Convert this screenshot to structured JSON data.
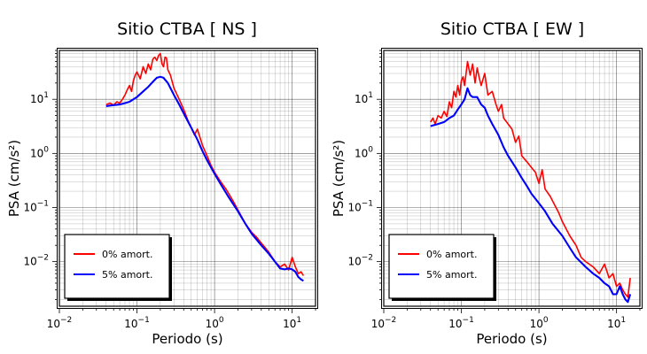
{
  "chart_data": [
    {
      "type": "line",
      "title": "Sitio CTBA [ NS ]",
      "xlabel": "Periodo (s)",
      "ylabel": "PSA (cm/s²)",
      "xscale": "log",
      "yscale": "log",
      "xlim": [
        0.01,
        20
      ],
      "ylim": [
        0.0015,
        80
      ],
      "grid": true,
      "legend_position": "bottom-left",
      "x_ticks": [
        {
          "b": "10",
          "e": "−2"
        },
        {
          "b": "10",
          "e": "−1"
        },
        {
          "b": "10",
          "e": "0"
        },
        {
          "b": "10",
          "e": "1"
        }
      ],
      "y_ticks": [
        {
          "b": "10",
          "e": "−2"
        },
        {
          "b": "10",
          "e": "−1"
        },
        {
          "b": "10",
          "e": "0"
        },
        {
          "b": "10",
          "e": "1"
        }
      ],
      "series": [
        {
          "name": "0% amort.",
          "color": "#ff0000",
          "x": [
            0.04,
            0.045,
            0.05,
            0.055,
            0.06,
            0.065,
            0.07,
            0.075,
            0.08,
            0.085,
            0.09,
            0.095,
            0.1,
            0.11,
            0.12,
            0.13,
            0.14,
            0.15,
            0.16,
            0.17,
            0.18,
            0.19,
            0.2,
            0.21,
            0.22,
            0.23,
            0.24,
            0.25,
            0.27,
            0.3,
            0.35,
            0.4,
            0.45,
            0.5,
            0.55,
            0.6,
            0.7,
            0.8,
            0.9,
            1.0,
            1.2,
            1.4,
            1.6,
            1.8,
            2.0,
            2.5,
            3,
            3.5,
            4,
            4.5,
            5,
            6,
            7,
            8,
            9,
            10,
            11,
            12,
            13,
            14
          ],
          "y": [
            8,
            8.5,
            7.8,
            9,
            8.5,
            10,
            12,
            15,
            18,
            14,
            22,
            28,
            32,
            24,
            40,
            30,
            45,
            35,
            55,
            60,
            52,
            65,
            70,
            45,
            40,
            60,
            58,
            35,
            28,
            16,
            10,
            6.5,
            4.2,
            3,
            2.2,
            2.8,
            1.4,
            0.9,
            0.6,
            0.45,
            0.3,
            0.22,
            0.16,
            0.12,
            0.09,
            0.05,
            0.035,
            0.028,
            0.022,
            0.018,
            0.015,
            0.01,
            0.008,
            0.009,
            0.007,
            0.012,
            0.008,
            0.006,
            0.0065,
            0.0055
          ]
        },
        {
          "name": "5% amort.",
          "color": "#0000ff",
          "x": [
            0.04,
            0.05,
            0.06,
            0.07,
            0.08,
            0.09,
            0.1,
            0.12,
            0.14,
            0.16,
            0.18,
            0.2,
            0.22,
            0.25,
            0.3,
            0.35,
            0.4,
            0.5,
            0.6,
            0.7,
            0.8,
            1.0,
            1.2,
            1.5,
            2,
            2.5,
            3,
            4,
            5,
            6,
            7,
            8,
            9,
            10,
            11,
            12,
            13,
            14
          ],
          "y": [
            7.5,
            7.8,
            8,
            8.5,
            9,
            10,
            11,
            14,
            17,
            21,
            25,
            26,
            25,
            20,
            12,
            8,
            5.5,
            3,
            1.8,
            1.1,
            0.75,
            0.42,
            0.27,
            0.16,
            0.085,
            0.05,
            0.033,
            0.02,
            0.014,
            0.01,
            0.0075,
            0.0072,
            0.0075,
            0.0072,
            0.0065,
            0.0052,
            0.0047,
            0.0044
          ]
        }
      ]
    },
    {
      "type": "line",
      "title": "Sitio CTBA [ EW ]",
      "xlabel": "Periodo (s)",
      "ylabel": "PSA (cm/s²)",
      "xscale": "log",
      "yscale": "log",
      "xlim": [
        0.01,
        20
      ],
      "ylim": [
        0.0015,
        80
      ],
      "grid": true,
      "legend_position": "bottom-left",
      "x_ticks": [
        {
          "b": "10",
          "e": "−2"
        },
        {
          "b": "10",
          "e": "−1"
        },
        {
          "b": "10",
          "e": "0"
        },
        {
          "b": "10",
          "e": "1"
        }
      ],
      "y_ticks": [
        {
          "b": "10",
          "e": "−2"
        },
        {
          "b": "10",
          "e": "−1"
        },
        {
          "b": "10",
          "e": "0"
        },
        {
          "b": "10",
          "e": "1"
        }
      ],
      "series": [
        {
          "name": "0% amort.",
          "color": "#ff0000",
          "x": [
            0.04,
            0.043,
            0.046,
            0.05,
            0.055,
            0.06,
            0.065,
            0.07,
            0.075,
            0.08,
            0.085,
            0.09,
            0.095,
            0.1,
            0.105,
            0.11,
            0.12,
            0.13,
            0.14,
            0.15,
            0.16,
            0.17,
            0.18,
            0.2,
            0.22,
            0.25,
            0.28,
            0.3,
            0.33,
            0.35,
            0.4,
            0.45,
            0.5,
            0.55,
            0.6,
            0.7,
            0.8,
            0.9,
            1.0,
            1.1,
            1.2,
            1.4,
            1.6,
            1.8,
            2,
            2.5,
            3,
            3.5,
            4,
            5,
            6,
            7,
            8,
            9,
            10,
            11,
            12,
            13,
            14,
            15
          ],
          "y": [
            3.8,
            4.5,
            3.5,
            5,
            4.5,
            6,
            4.8,
            9,
            7,
            14,
            11,
            18,
            12,
            22,
            26,
            18,
            50,
            28,
            45,
            20,
            38,
            25,
            18,
            30,
            12,
            14,
            8,
            6,
            8,
            4.5,
            3.5,
            2.8,
            1.6,
            2.1,
            0.9,
            0.7,
            0.55,
            0.45,
            0.28,
            0.5,
            0.22,
            0.16,
            0.11,
            0.08,
            0.055,
            0.03,
            0.02,
            0.012,
            0.01,
            0.008,
            0.006,
            0.009,
            0.005,
            0.006,
            0.0035,
            0.004,
            0.003,
            0.0025,
            0.0022,
            0.005
          ]
        },
        {
          "name": "5% amort.",
          "color": "#0000ff",
          "x": [
            0.04,
            0.05,
            0.06,
            0.07,
            0.08,
            0.09,
            0.1,
            0.11,
            0.12,
            0.13,
            0.14,
            0.16,
            0.18,
            0.2,
            0.22,
            0.25,
            0.3,
            0.35,
            0.4,
            0.5,
            0.6,
            0.7,
            0.8,
            1.0,
            1.2,
            1.5,
            2,
            2.5,
            3,
            4,
            5,
            6,
            7,
            8,
            9,
            10,
            11,
            12,
            13,
            14,
            15
          ],
          "y": [
            3.2,
            3.5,
            3.8,
            4.5,
            5,
            6.5,
            8,
            10,
            16,
            12,
            11,
            11,
            8,
            7,
            5,
            3.5,
            2.2,
            1.3,
            0.9,
            0.55,
            0.35,
            0.25,
            0.18,
            0.12,
            0.085,
            0.05,
            0.03,
            0.018,
            0.012,
            0.008,
            0.006,
            0.005,
            0.004,
            0.0035,
            0.0025,
            0.0025,
            0.0035,
            0.0025,
            0.002,
            0.0018,
            0.0025
          ]
        }
      ]
    }
  ]
}
